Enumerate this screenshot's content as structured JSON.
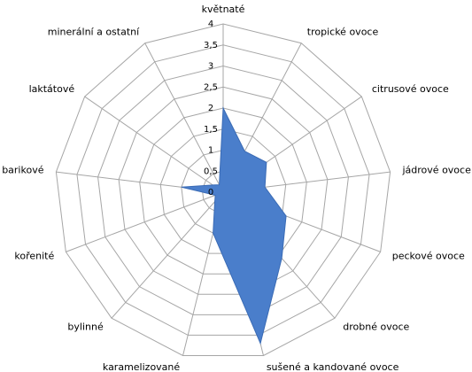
{
  "chart_data": {
    "type": "radar",
    "categories": [
      "květnaté",
      "tropické ovoce",
      "citrusové ovoce",
      "jádrové ovoce",
      "peckové ovoce",
      "drobné ovoce",
      "sušené a kandované ovoce",
      "karamelizované",
      "bylinné",
      "kořenité",
      "barikové",
      "laktátové",
      "minerální a ostatní"
    ],
    "values": [
      2,
      1.1,
      1.25,
      1,
      1.6,
      2.1,
      3.7,
      1,
      0.3,
      0.2,
      1,
      0.3,
      0.2
    ],
    "color": "#4a7ecb",
    "ylim": [
      0,
      4
    ],
    "yticks": [
      0,
      {
        "value": 0.5,
        "label": "0,5"
      },
      1,
      {
        "value": 1.5,
        "label": "1,5"
      },
      2,
      {
        "value": 2.5,
        "label": "2,5"
      },
      3,
      {
        "value": 3.5,
        "label": "3,5"
      },
      4
    ],
    "grid": true
  }
}
